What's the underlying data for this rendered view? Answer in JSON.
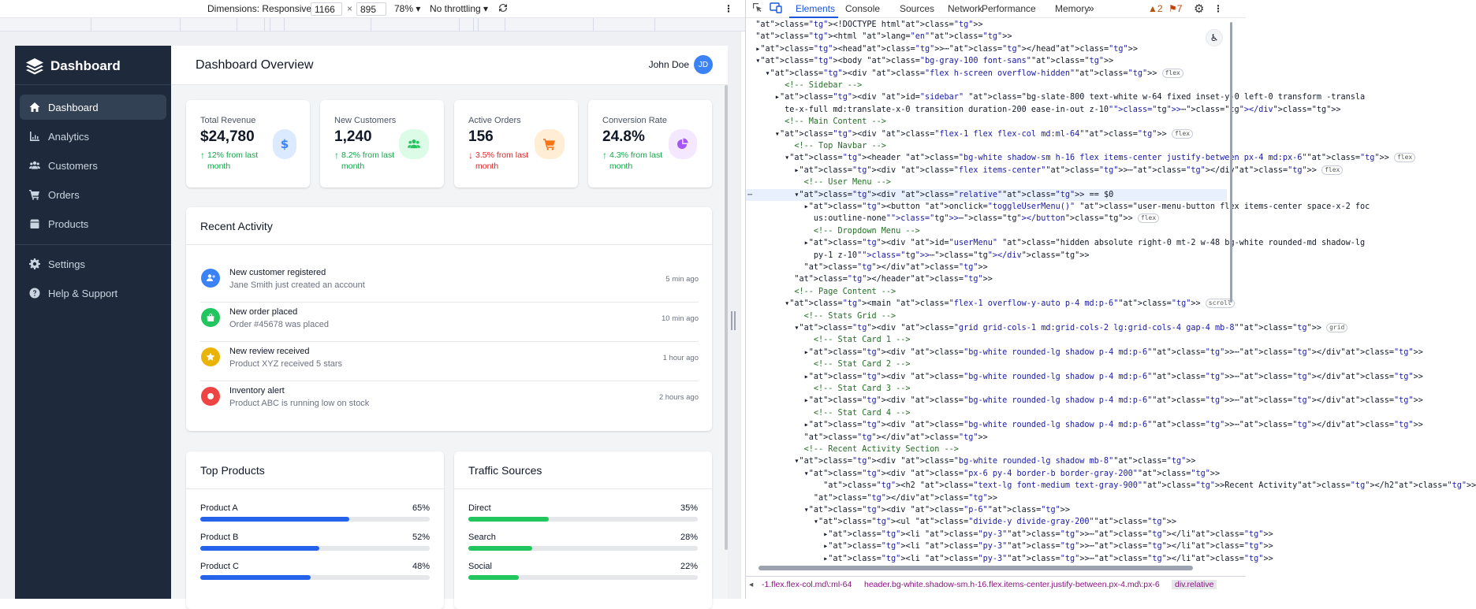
{
  "device_toolbar": {
    "dimensions_label": "Dimensions: Responsive",
    "width": "1166",
    "times": "×",
    "height": "895",
    "zoom": "78%",
    "throttling": "No throttling"
  },
  "sidebar": {
    "brand": "Dashboard",
    "items": [
      {
        "label": "Dashboard",
        "icon": "home-icon"
      },
      {
        "label": "Analytics",
        "icon": "chart-line-icon"
      },
      {
        "label": "Customers",
        "icon": "users-icon"
      },
      {
        "label": "Orders",
        "icon": "cart-icon"
      },
      {
        "label": "Products",
        "icon": "box-icon"
      },
      {
        "label": "Settings",
        "icon": "gear-icon"
      },
      {
        "label": "Help & Support",
        "icon": "question-icon"
      }
    ]
  },
  "header": {
    "title": "Dashboard Overview",
    "user_name": "John Doe",
    "initials": "JD"
  },
  "stats": [
    {
      "label": "Total Revenue",
      "value": "$24,780",
      "change": "12% from last month",
      "trend": "up",
      "icon": "dollar-icon"
    },
    {
      "label": "New Customers",
      "value": "1,240",
      "change": "8.2% from last month",
      "trend": "up",
      "icon": "users-icon"
    },
    {
      "label": "Active Orders",
      "value": "156",
      "change": "3.5% from last month",
      "trend": "down",
      "icon": "cart-icon"
    },
    {
      "label": "Conversion Rate",
      "value": "24.8%",
      "change": "4.3% from last month",
      "trend": "up",
      "icon": "pie-icon"
    }
  ],
  "recent_activity": {
    "title": "Recent Activity",
    "items": [
      {
        "title": "New customer registered",
        "subtitle": "Jane Smith just created an account",
        "time": "5 min ago",
        "color": "#3b82f6",
        "icon": "user-plus-icon"
      },
      {
        "title": "New order placed",
        "subtitle": "Order #45678 was placed",
        "time": "10 min ago",
        "color": "#22c55e",
        "icon": "bag-icon"
      },
      {
        "title": "New review received",
        "subtitle": "Product XYZ received 5 stars",
        "time": "1 hour ago",
        "color": "#eab308",
        "icon": "star-icon"
      },
      {
        "title": "Inventory alert",
        "subtitle": "Product ABC is running low on stock",
        "time": "2 hours ago",
        "color": "#ef4444",
        "icon": "alert-icon"
      }
    ]
  },
  "top_products": {
    "title": "Top Products",
    "color": "#2563eb",
    "items": [
      {
        "name": "Product A",
        "percent": 65,
        "label": "65%"
      },
      {
        "name": "Product B",
        "percent": 52,
        "label": "52%"
      },
      {
        "name": "Product C",
        "percent": 48,
        "label": "48%"
      }
    ]
  },
  "traffic_sources": {
    "title": "Traffic Sources",
    "color": "#22c55e",
    "items": [
      {
        "name": "Direct",
        "percent": 35,
        "label": "35%"
      },
      {
        "name": "Search",
        "percent": 28,
        "label": "28%"
      },
      {
        "name": "Social",
        "percent": 22,
        "label": "22%"
      }
    ]
  },
  "devtools": {
    "tabs": [
      "Elements",
      "Console",
      "Sources",
      "Network",
      "Performance",
      "Memory",
      "»"
    ],
    "warnings": "2",
    "issues": "7",
    "dom_lines": [
      "<!DOCTYPE html>",
      "<html lang=\"en\">",
      "▸<head>⋯</head>",
      "▾<body class=\"bg-gray-100 font-sans\">",
      "  ▾<div class=\"flex h-screen overflow-hidden\"> flex",
      "      <!-- Sidebar -->",
      "    ▸<div id=\"sidebar\" class=\"bg-slate-800 text-white w-64 fixed inset-y-0 left-0 transform -transla",
      "      te-x-full md:translate-x-0 transition duration-200 ease-in-out z-10\">⋯</div>",
      "      <!-- Main Content -->",
      "    ▾<div class=\"flex-1 flex flex-col md:ml-64\"> flex",
      "        <!-- Top Navbar -->",
      "      ▾<header class=\"bg-white shadow-sm h-16 flex items-center justify-between px-4 md:px-6\"> flex",
      "        ▸<div class=\"flex items-center\">⋯</div> flex",
      "          <!-- User Menu -->",
      "        ▾<div class=\"relative\"> == $0",
      "          ▸<button onclick=\"toggleUserMenu()\" class=\"user-menu-button flex items-center space-x-2 foc",
      "            us:outline-none\">⋯</button> flex",
      "            <!-- Dropdown Menu -->",
      "          ▸<div id=\"userMenu\" class=\"hidden absolute right-0 mt-2 w-48 bg-white rounded-md shadow-lg",
      "            py-1 z-10\">⋯</div>",
      "          </div>",
      "        </header>",
      "        <!-- Page Content -->",
      "      ▾<main class=\"flex-1 overflow-y-auto p-4 md:p-6\"> scroll",
      "          <!-- Stats Grid -->",
      "        ▾<div class=\"grid grid-cols-1 md:grid-cols-2 lg:grid-cols-4 gap-4 mb-8\"> grid",
      "            <!-- Stat Card 1 -->",
      "          ▸<div class=\"bg-white rounded-lg shadow p-4 md:p-6\">⋯</div>",
      "            <!-- Stat Card 2 -->",
      "          ▸<div class=\"bg-white rounded-lg shadow p-4 md:p-6\">⋯</div>",
      "            <!-- Stat Card 3 -->",
      "          ▸<div class=\"bg-white rounded-lg shadow p-4 md:p-6\">⋯</div>",
      "            <!-- Stat Card 4 -->",
      "          ▸<div class=\"bg-white rounded-lg shadow p-4 md:p-6\">⋯</div>",
      "          </div>",
      "          <!-- Recent Activity Section -->",
      "        ▾<div class=\"bg-white rounded-lg shadow mb-8\">",
      "          ▾<div class=\"px-6 py-4 border-b border-gray-200\">",
      "              <h2 class=\"text-lg font-medium text-gray-900\">Recent Activity</h2>",
      "            </div>",
      "          ▾<div class=\"p-6\">",
      "            ▾<ul class=\"divide-y divide-gray-200\">",
      "              ▸<li class=\"py-3\">⋯</li>",
      "              ▸<li class=\"py-3\">⋯</li>",
      "              ▸<li class=\"py-3\">⋯</li>"
    ],
    "selected_line": 14,
    "breadcrumbs": [
      "-1.flex.flex-col.md\\:ml-64",
      "header.bg-white.shadow-sm.h-16.flex.items-center.justify-between.px-4.md\\:px-6",
      "div.relative"
    ]
  }
}
